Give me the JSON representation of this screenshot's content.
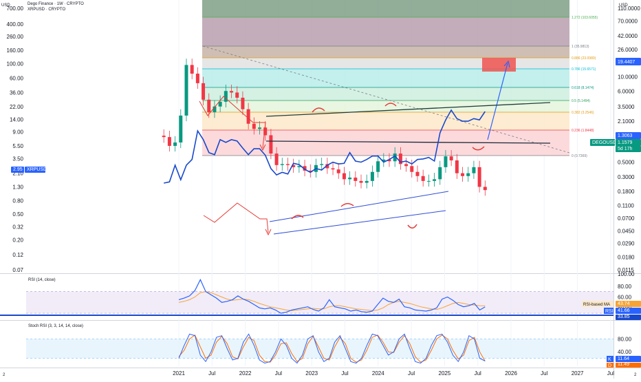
{
  "header": {
    "title": "Dego Finance · 1W · CRYPTO",
    "subtitle": "XRPUSD · CRYPTO"
  },
  "axes": {
    "left_unit": "USD",
    "right_unit": "USD",
    "left_ticks": [
      "700.00",
      "400.00",
      "260.00",
      "160.00",
      "100.00",
      "60.00",
      "36.00",
      "22.00",
      "14.00",
      "9.00",
      "5.50",
      "3.50",
      "2.10",
      "1.30",
      "0.80",
      "0.50",
      "0.32",
      "0.20",
      "0.12",
      "0.07"
    ],
    "right_ticks": [
      "110.0000",
      "70.0000",
      "42.0000",
      "26.0000",
      "16.0000",
      "10.0000",
      "6.0000",
      "3.5000",
      "2.1000",
      "1.3000",
      "0.8000",
      "0.5000",
      "0.3000",
      "0.1800",
      "0.1100",
      "0.0700",
      "0.0450",
      "0.0290",
      "0.0180",
      "0.0115"
    ],
    "x_ticks": [
      "2021",
      "Jul",
      "2022",
      "Jul",
      "2023",
      "Jul",
      "2024",
      "Jul",
      "2025",
      "Jul",
      "2026",
      "Jul",
      "2027",
      "Jul"
    ],
    "corner_left": "2",
    "corner_right": "2"
  },
  "fib_levels": [
    {
      "label": "1.272 (103.6055)",
      "color": "#4caf50"
    },
    {
      "label": "1 (35.9813)",
      "color": "#787b86"
    },
    {
      "label": "0.886 (23.0980)",
      "color": "#e59b10"
    },
    {
      "label": "0.786 (15.6571)",
      "color": "#00bcd4"
    },
    {
      "label": "0.618 (8.1474)",
      "color": "#089981"
    },
    {
      "label": "0.5 (5.1494)",
      "color": "#2e9e5b"
    },
    {
      "label": "0.382 (3.2546)",
      "color": "#e59b10"
    },
    {
      "label": "0.236 (1.8448)",
      "color": "#f23645"
    },
    {
      "label": "0 (0.7369)",
      "color": "#787b86"
    }
  ],
  "price_tags": [
    {
      "text": "19.4407",
      "color": "#2962ff"
    },
    {
      "text": "1.3063",
      "color": "#2962ff"
    },
    {
      "text": "DEGOUSD",
      "color": "#089981"
    },
    {
      "text": "1.1579",
      "color": "#089981"
    },
    {
      "text": "5d 17h",
      "color": "#089981"
    },
    {
      "text": "2.95",
      "color": "#2962ff"
    },
    {
      "text": "XRPUSD",
      "color": "#2962ff"
    }
  ],
  "rsi": {
    "title": "RSI (14, close)",
    "ticks": [
      "80.00",
      "60.00",
      "40.00"
    ],
    "ma_label": "RSI-based MA",
    "ma_value": "43.74",
    "rsi_label": "RSI",
    "rsi_value": "41.66",
    "low_value": "33.85",
    "top_value": "100.00"
  },
  "stoch": {
    "title": "Stoch RSI (3, 3, 14, 14, close)",
    "ticks": [
      "80.00",
      "40.00"
    ],
    "k_label": "K",
    "k_value": "11.64",
    "d_label": "D",
    "d_value": "11.49"
  },
  "colors": {
    "candle_up": "#089981",
    "candle_down": "#f23645",
    "xrp_line": "#1848cc",
    "rsi_line": "#2962ff",
    "rsi_ma": "#f7a335",
    "stoch_k": "#2962ff",
    "stoch_d": "#ff6d00",
    "arrow_red": "#e53935",
    "channel_blue": "#2c4cd6"
  },
  "chart_data": [
    {
      "type": "candlestick",
      "name": "DEGOUSD",
      "scale": "log",
      "x_range": [
        "2020-09",
        "2027-07"
      ],
      "ylim": [
        0.07,
        700
      ],
      "series": [
        {
          "t": "2020-10",
          "v": 7.5
        },
        {
          "t": "2020-11",
          "v": 5.5
        },
        {
          "t": "2020-12",
          "v": 6.2
        },
        {
          "t": "2021-01",
          "v": 16.0
        },
        {
          "t": "2021-02",
          "v": 95.0
        },
        {
          "t": "2021-03",
          "v": 70.0
        },
        {
          "t": "2021-04",
          "v": 50.0
        },
        {
          "t": "2021-05",
          "v": 28.0
        },
        {
          "t": "2021-06",
          "v": 18.0
        },
        {
          "t": "2021-07",
          "v": 22.0
        },
        {
          "t": "2021-08",
          "v": 26.0
        },
        {
          "t": "2021-09",
          "v": 38.0
        },
        {
          "t": "2021-10",
          "v": 36.0
        },
        {
          "t": "2021-11",
          "v": 30.0
        },
        {
          "t": "2021-12",
          "v": 20.0
        },
        {
          "t": "2022-01",
          "v": 12.0
        },
        {
          "t": "2022-02",
          "v": 10.0
        },
        {
          "t": "2022-03",
          "v": 10.5
        },
        {
          "t": "2022-04",
          "v": 8.0
        },
        {
          "t": "2022-05",
          "v": 4.2
        },
        {
          "t": "2022-06",
          "v": 2.8
        },
        {
          "t": "2022-07",
          "v": 2.9
        },
        {
          "t": "2022-08",
          "v": 2.8
        },
        {
          "t": "2022-09",
          "v": 2.6
        },
        {
          "t": "2022-10",
          "v": 2.7
        },
        {
          "t": "2022-11",
          "v": 2.3
        },
        {
          "t": "2022-12",
          "v": 2.2
        },
        {
          "t": "2023-01",
          "v": 2.8
        },
        {
          "t": "2023-02",
          "v": 2.9
        },
        {
          "t": "2023-03",
          "v": 2.5
        },
        {
          "t": "2023-04",
          "v": 2.4
        },
        {
          "t": "2023-05",
          "v": 2.1
        },
        {
          "t": "2023-06",
          "v": 1.7
        },
        {
          "t": "2023-07",
          "v": 1.8
        },
        {
          "t": "2023-08",
          "v": 1.6
        },
        {
          "t": "2023-09",
          "v": 1.5
        },
        {
          "t": "2023-10",
          "v": 1.6
        },
        {
          "t": "2023-11",
          "v": 2.2
        },
        {
          "t": "2023-12",
          "v": 3.2
        },
        {
          "t": "2024-01",
          "v": 3.4
        },
        {
          "t": "2024-02",
          "v": 3.2
        },
        {
          "t": "2024-03",
          "v": 4.2
        },
        {
          "t": "2024-04",
          "v": 2.9
        },
        {
          "t": "2024-05",
          "v": 2.7
        },
        {
          "t": "2024-06",
          "v": 2.2
        },
        {
          "t": "2024-07",
          "v": 1.9
        },
        {
          "t": "2024-08",
          "v": 1.6
        },
        {
          "t": "2024-09",
          "v": 1.6
        },
        {
          "t": "2024-10",
          "v": 1.7
        },
        {
          "t": "2024-11",
          "v": 2.6
        },
        {
          "t": "2024-12",
          "v": 3.8
        },
        {
          "t": "2025-01",
          "v": 3.3
        },
        {
          "t": "2025-02",
          "v": 2.1
        },
        {
          "t": "2025-03",
          "v": 1.9
        },
        {
          "t": "2025-04",
          "v": 2.1
        },
        {
          "t": "2025-05",
          "v": 2.6
        },
        {
          "t": "2025-06",
          "v": 1.3
        },
        {
          "t": "2025-07",
          "v": 1.16
        }
      ]
    },
    {
      "type": "line",
      "name": "XRPUSD",
      "scale": "log",
      "ylim": [
        0.0115,
        110
      ],
      "series": [
        {
          "t": "2020-10",
          "v": 0.24
        },
        {
          "t": "2020-11",
          "v": 0.25
        },
        {
          "t": "2020-12",
          "v": 0.45
        },
        {
          "t": "2021-01",
          "v": 0.27
        },
        {
          "t": "2021-02",
          "v": 0.45
        },
        {
          "t": "2021-03",
          "v": 0.55
        },
        {
          "t": "2021-04",
          "v": 1.5
        },
        {
          "t": "2021-05",
          "v": 1.1
        },
        {
          "t": "2021-06",
          "v": 0.7
        },
        {
          "t": "2021-07",
          "v": 0.65
        },
        {
          "t": "2021-08",
          "v": 1.1
        },
        {
          "t": "2021-09",
          "v": 1.0
        },
        {
          "t": "2021-10",
          "v": 1.1
        },
        {
          "t": "2021-11",
          "v": 1.05
        },
        {
          "t": "2021-12",
          "v": 0.82
        },
        {
          "t": "2022-01",
          "v": 0.65
        },
        {
          "t": "2022-02",
          "v": 0.8
        },
        {
          "t": "2022-03",
          "v": 0.8
        },
        {
          "t": "2022-04",
          "v": 0.64
        },
        {
          "t": "2022-05",
          "v": 0.4
        },
        {
          "t": "2022-06",
          "v": 0.32
        },
        {
          "t": "2022-07",
          "v": 0.35
        },
        {
          "t": "2022-08",
          "v": 0.33
        },
        {
          "t": "2022-09",
          "v": 0.48
        },
        {
          "t": "2022-10",
          "v": 0.46
        },
        {
          "t": "2022-11",
          "v": 0.39
        },
        {
          "t": "2022-12",
          "v": 0.35
        },
        {
          "t": "2023-01",
          "v": 0.4
        },
        {
          "t": "2023-02",
          "v": 0.38
        },
        {
          "t": "2023-03",
          "v": 0.45
        },
        {
          "t": "2023-04",
          "v": 0.5
        },
        {
          "t": "2023-05",
          "v": 0.47
        },
        {
          "t": "2023-06",
          "v": 0.48
        },
        {
          "t": "2023-07",
          "v": 0.7
        },
        {
          "t": "2023-08",
          "v": 0.52
        },
        {
          "t": "2023-09",
          "v": 0.5
        },
        {
          "t": "2023-10",
          "v": 0.55
        },
        {
          "t": "2023-11",
          "v": 0.62
        },
        {
          "t": "2023-12",
          "v": 0.62
        },
        {
          "t": "2024-01",
          "v": 0.5
        },
        {
          "t": "2024-02",
          "v": 0.55
        },
        {
          "t": "2024-03",
          "v": 0.62
        },
        {
          "t": "2024-04",
          "v": 0.5
        },
        {
          "t": "2024-05",
          "v": 0.52
        },
        {
          "t": "2024-06",
          "v": 0.47
        },
        {
          "t": "2024-07",
          "v": 0.55
        },
        {
          "t": "2024-08",
          "v": 0.56
        },
        {
          "t": "2024-09",
          "v": 0.59
        },
        {
          "t": "2024-10",
          "v": 0.52
        },
        {
          "t": "2024-11",
          "v": 1.4
        },
        {
          "t": "2024-12",
          "v": 2.2
        },
        {
          "t": "2025-01",
          "v": 3.1
        },
        {
          "t": "2025-02",
          "v": 2.3
        },
        {
          "t": "2025-03",
          "v": 2.1
        },
        {
          "t": "2025-04",
          "v": 2.1
        },
        {
          "t": "2025-05",
          "v": 2.3
        },
        {
          "t": "2025-06",
          "v": 2.2
        },
        {
          "t": "2025-07",
          "v": 2.95
        }
      ]
    },
    {
      "type": "line",
      "name": "RSI (14, close)",
      "ylim": [
        20,
        100
      ],
      "series_rsi": [
        55,
        58,
        62,
        72,
        92,
        70,
        64,
        58,
        50,
        52,
        55,
        62,
        56,
        52,
        46,
        40,
        38,
        40,
        36,
        30,
        32,
        36,
        38,
        40,
        42,
        37,
        34,
        40,
        55,
        42,
        40,
        38,
        34,
        36,
        33,
        32,
        34,
        46,
        58,
        52,
        50,
        56,
        42,
        40,
        36,
        35,
        34,
        36,
        40,
        56,
        60,
        54,
        46,
        42,
        44,
        48,
        36,
        41.66
      ],
      "series_ma": [
        50,
        52,
        55,
        60,
        68,
        70,
        68,
        64,
        60,
        56,
        54,
        55,
        56,
        55,
        52,
        48,
        45,
        42,
        40,
        38,
        36,
        35,
        36,
        37,
        38,
        39,
        38,
        38,
        42,
        44,
        44,
        42,
        40,
        38,
        37,
        36,
        35,
        36,
        40,
        46,
        50,
        52,
        50,
        48,
        45,
        42,
        40,
        38,
        37,
        40,
        44,
        48,
        50,
        48,
        46,
        45,
        44,
        43.74
      ]
    },
    {
      "type": "line",
      "name": "Stoch RSI (3, 3, 14, 14, close)",
      "ylim": [
        0,
        100
      ],
      "series_k": [
        20,
        60,
        95,
        90,
        30,
        10,
        40,
        85,
        90,
        50,
        15,
        20,
        70,
        95,
        60,
        15,
        5,
        10,
        40,
        80,
        60,
        20,
        5,
        30,
        80,
        90,
        40,
        10,
        20,
        70,
        90,
        50,
        10,
        5,
        20,
        60,
        95,
        90,
        60,
        30,
        40,
        80,
        95,
        50,
        10,
        5,
        20,
        60,
        90,
        95,
        70,
        30,
        10,
        40,
        90,
        80,
        20,
        11.64
      ],
      "series_d": [
        25,
        45,
        80,
        92,
        55,
        20,
        30,
        70,
        88,
        65,
        25,
        18,
        55,
        85,
        75,
        30,
        10,
        8,
        30,
        65,
        68,
        35,
        10,
        20,
        65,
        88,
        55,
        20,
        15,
        55,
        85,
        65,
        20,
        8,
        15,
        45,
        85,
        92,
        70,
        40,
        38,
        70,
        90,
        65,
        25,
        8,
        15,
        45,
        80,
        92,
        80,
        45,
        18,
        30,
        75,
        85,
        40,
        11.49
      ]
    }
  ]
}
